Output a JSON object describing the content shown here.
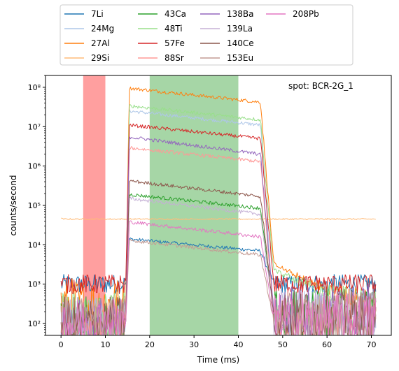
{
  "chart_data": {
    "type": "line",
    "annotation": "spot: BCR-2G_1",
    "xlabel": "Time (ms)",
    "ylabel": "counts/second",
    "xlim": [
      -3.5,
      74.5
    ],
    "ylim": [
      50,
      200000000
    ],
    "yscale": "log",
    "grid": false,
    "legend_position": "top-center, above plot, 4 columns",
    "x_ticks": [
      0,
      10,
      20,
      30,
      40,
      50,
      60,
      70
    ],
    "x_tick_labels": [
      "0",
      "10",
      "20",
      "30",
      "40",
      "50",
      "60",
      "70"
    ],
    "y_ticks": [
      100,
      1000,
      10000,
      100000,
      1000000,
      10000000,
      100000000
    ],
    "y_tick_labels": [
      "10²",
      "10³",
      "10⁴",
      "10⁵",
      "10⁶",
      "10⁷",
      "10⁸"
    ],
    "shaded_regions": [
      {
        "x": [
          5,
          10
        ],
        "color": "#ff9f9f"
      },
      {
        "x": [
          20,
          40
        ],
        "color": "#a6d6a6"
      }
    ],
    "series": [
      {
        "name": "7Li",
        "color": "#1f77b4",
        "bg": 1000,
        "plateau": [
          14000,
          7000
        ],
        "post": 1000
      },
      {
        "name": "24Mg",
        "color": "#aec7e8",
        "bg": 100,
        "plateau": [
          25000000,
          11000000
        ],
        "post": 150
      },
      {
        "name": "27Al",
        "color": "#ff7f0e",
        "bg": 300,
        "plateau": [
          95000000,
          42000000
        ],
        "post": 3000
      },
      {
        "name": "29Si",
        "color": "#ffbb78",
        "bg": 45000,
        "plateau": [
          45000,
          45000
        ],
        "post": 45000
      },
      {
        "name": "43Ca",
        "color": "#2ca02c",
        "bg": 100,
        "plateau": [
          190000,
          85000
        ],
        "post": 150
      },
      {
        "name": "48Ti",
        "color": "#98df8a",
        "bg": 150,
        "plateau": [
          34000000,
          15000000
        ],
        "post": 2000
      },
      {
        "name": "57Fe",
        "color": "#d62728",
        "bg": 1000,
        "plateau": [
          11000000,
          5000000
        ],
        "post": 1000
      },
      {
        "name": "88Sr",
        "color": "#ff9896",
        "bg": 100,
        "plateau": [
          2900000,
          1300000
        ],
        "post": 150
      },
      {
        "name": "138Ba",
        "color": "#9467bd",
        "bg": 100,
        "plateau": [
          5500000,
          2000000
        ],
        "post": 200
      },
      {
        "name": "139La",
        "color": "#c5b0d5",
        "bg": 100,
        "plateau": [
          150000,
          60000
        ],
        "post": 150
      },
      {
        "name": "140Ce",
        "color": "#8c564b",
        "bg": 100,
        "plateau": [
          420000,
          170000
        ],
        "post": 150
      },
      {
        "name": "153Eu",
        "color": "#c49c94",
        "bg": 100,
        "plateau": [
          13000,
          5500
        ],
        "post": 120
      },
      {
        "name": "208Pb",
        "color": "#e377c2",
        "bg": 100,
        "plateau": [
          38000,
          16000
        ],
        "post": 120
      }
    ]
  }
}
